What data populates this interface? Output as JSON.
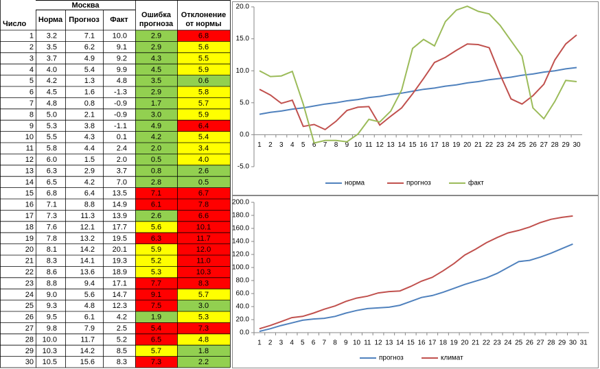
{
  "table": {
    "title": "Москва",
    "columns": [
      [
        "Число"
      ],
      [
        "Норма"
      ],
      [
        "Прогноз"
      ],
      [
        "Факт"
      ],
      [
        "Ошибка",
        "прогноза"
      ],
      [
        "Отклонение",
        "от нормы"
      ]
    ],
    "rows": [
      [
        "1",
        "3.2",
        "7.1",
        "10.0",
        "2.9",
        "6.8"
      ],
      [
        "2",
        "3.5",
        "6.2",
        "9.1",
        "2.9",
        "5.6"
      ],
      [
        "3",
        "3.7",
        "4.9",
        "9.2",
        "4.3",
        "5.5"
      ],
      [
        "4",
        "4.0",
        "5.4",
        "9.9",
        "4.5",
        "5.9"
      ],
      [
        "5",
        "4.2",
        "1.3",
        "4.8",
        "3.5",
        "0.6"
      ],
      [
        "6",
        "4.5",
        "1.6",
        "-1.3",
        "2.9",
        "5.8"
      ],
      [
        "7",
        "4.8",
        "0.8",
        "-0.9",
        "1.7",
        "5.7"
      ],
      [
        "8",
        "5.0",
        "2.1",
        "-0.9",
        "3.0",
        "5.9"
      ],
      [
        "9",
        "5.3",
        "3.8",
        "-1.1",
        "4.9",
        "6.4"
      ],
      [
        "10",
        "5.5",
        "4.3",
        "0.1",
        "4.2",
        "5.4"
      ],
      [
        "11",
        "5.8",
        "4.4",
        "2.4",
        "2.0",
        "3.4"
      ],
      [
        "12",
        "6.0",
        "1.5",
        "2.0",
        "0.5",
        "4.0"
      ],
      [
        "13",
        "6.3",
        "2.9",
        "3.7",
        "0.8",
        "2.6"
      ],
      [
        "14",
        "6.5",
        "4.2",
        "7.0",
        "2.8",
        "0.5"
      ],
      [
        "15",
        "6.8",
        "6.4",
        "13.5",
        "7.1",
        "6.7"
      ],
      [
        "16",
        "7.1",
        "8.8",
        "14.9",
        "6.1",
        "7.8"
      ],
      [
        "17",
        "7.3",
        "11.3",
        "13.9",
        "2.6",
        "6.6"
      ],
      [
        "18",
        "7.6",
        "12.1",
        "17.7",
        "5.6",
        "10.1"
      ],
      [
        "19",
        "7.8",
        "13.2",
        "19.5",
        "6.3",
        "11.7"
      ],
      [
        "20",
        "8.1",
        "14.2",
        "20.1",
        "5.9",
        "12.0"
      ],
      [
        "21",
        "8.3",
        "14.1",
        "19.3",
        "5.2",
        "11.0"
      ],
      [
        "22",
        "8.6",
        "13.6",
        "18.9",
        "5.3",
        "10.3"
      ],
      [
        "23",
        "8.8",
        "9.4",
        "17.1",
        "7.7",
        "8.3"
      ],
      [
        "24",
        "9.0",
        "5.6",
        "14.7",
        "9.1",
        "5.7"
      ],
      [
        "25",
        "9.3",
        "4.8",
        "12.3",
        "7.5",
        "3.0"
      ],
      [
        "26",
        "9.5",
        "6.1",
        "4.2",
        "1.9",
        "5.3"
      ],
      [
        "27",
        "9.8",
        "7.9",
        "2.5",
        "5.4",
        "7.3"
      ],
      [
        "28",
        "10.0",
        "11.7",
        "5.2",
        "6.5",
        "4.8"
      ],
      [
        "29",
        "10.3",
        "14.2",
        "8.5",
        "5.7",
        "1.8"
      ],
      [
        "30",
        "10.5",
        "15.6",
        "8.3",
        "7.3",
        "2.2"
      ]
    ],
    "cell_colors": [
      [
        "#92d050",
        "#ff0000"
      ],
      [
        "#92d050",
        "#ffff00"
      ],
      [
        "#92d050",
        "#ffff00"
      ],
      [
        "#92d050",
        "#ffff00"
      ],
      [
        "#92d050",
        "#92d050"
      ],
      [
        "#92d050",
        "#ffff00"
      ],
      [
        "#92d050",
        "#ffff00"
      ],
      [
        "#92d050",
        "#ffff00"
      ],
      [
        "#92d050",
        "#ff0000"
      ],
      [
        "#92d050",
        "#ffff00"
      ],
      [
        "#92d050",
        "#ffff00"
      ],
      [
        "#92d050",
        "#ffff00"
      ],
      [
        "#92d050",
        "#92d050"
      ],
      [
        "#92d050",
        "#92d050"
      ],
      [
        "#ff0000",
        "#ff0000"
      ],
      [
        "#ff0000",
        "#ff0000"
      ],
      [
        "#92d050",
        "#ff0000"
      ],
      [
        "#ffff00",
        "#ff0000"
      ],
      [
        "#ff0000",
        "#ff0000"
      ],
      [
        "#ffff00",
        "#ff0000"
      ],
      [
        "#ffff00",
        "#ff0000"
      ],
      [
        "#ffff00",
        "#ff0000"
      ],
      [
        "#ff0000",
        "#ff0000"
      ],
      [
        "#ff0000",
        "#ffff00"
      ],
      [
        "#ff0000",
        "#92d050"
      ],
      [
        "#92d050",
        "#ffff00"
      ],
      [
        "#ff0000",
        "#ff0000"
      ],
      [
        "#ff0000",
        "#ffff00"
      ],
      [
        "#ffff00",
        "#92d050"
      ],
      [
        "#ff0000",
        "#92d050"
      ]
    ]
  },
  "chart_data": [
    {
      "type": "line",
      "categories": [
        "1",
        "2",
        "3",
        "4",
        "5",
        "6",
        "7",
        "8",
        "9",
        "10",
        "11",
        "12",
        "13",
        "14",
        "15",
        "16",
        "17",
        "18",
        "19",
        "20",
        "21",
        "22",
        "23",
        "24",
        "25",
        "26",
        "27",
        "28",
        "29",
        "30"
      ],
      "ylim": [
        -5,
        20
      ],
      "yticks": [
        {
          "value": -5,
          "label": "-5.0"
        },
        {
          "value": 0,
          "label": "0.0"
        },
        {
          "value": 5,
          "label": "5.0"
        },
        {
          "value": 10,
          "label": "10.0"
        },
        {
          "value": 15,
          "label": "15.0"
        },
        {
          "value": 20,
          "label": "20.0"
        }
      ],
      "grid": false,
      "legend": "bottom",
      "series": [
        {
          "name": "норма",
          "color": "#4f81bd",
          "values": [
            3.2,
            3.5,
            3.7,
            4.0,
            4.2,
            4.5,
            4.8,
            5.0,
            5.3,
            5.5,
            5.8,
            6.0,
            6.3,
            6.5,
            6.8,
            7.1,
            7.3,
            7.6,
            7.8,
            8.1,
            8.3,
            8.6,
            8.8,
            9.0,
            9.3,
            9.5,
            9.8,
            10.0,
            10.3,
            10.5
          ]
        },
        {
          "name": "прогноз",
          "color": "#c0504d",
          "values": [
            7.1,
            6.2,
            4.9,
            5.4,
            1.3,
            1.6,
            0.8,
            2.1,
            3.8,
            4.3,
            4.4,
            1.5,
            2.9,
            4.2,
            6.4,
            8.8,
            11.3,
            12.1,
            13.2,
            14.2,
            14.1,
            13.6,
            9.4,
            5.6,
            4.8,
            6.1,
            7.9,
            11.7,
            14.2,
            15.6
          ]
        },
        {
          "name": "факт",
          "color": "#9bbb59",
          "values": [
            10.0,
            9.1,
            9.2,
            9.9,
            4.8,
            -1.3,
            -0.9,
            -0.9,
            -1.1,
            0.1,
            2.4,
            2.0,
            3.7,
            7.0,
            13.5,
            14.9,
            13.9,
            17.7,
            19.5,
            20.1,
            19.3,
            18.9,
            17.1,
            14.7,
            12.3,
            4.2,
            2.5,
            5.2,
            8.5,
            8.3
          ]
        }
      ]
    },
    {
      "type": "line",
      "categories": [
        "1",
        "2",
        "3",
        "4",
        "5",
        "6",
        "7",
        "8",
        "9",
        "10",
        "11",
        "12",
        "13",
        "14",
        "15",
        "16",
        "17",
        "18",
        "19",
        "20",
        "21",
        "22",
        "23",
        "24",
        "25",
        "26",
        "27",
        "28",
        "29",
        "30",
        "31"
      ],
      "ylim": [
        0,
        200
      ],
      "yticks": [
        {
          "value": 0,
          "label": "0.0"
        },
        {
          "value": 20,
          "label": "20.0"
        },
        {
          "value": 40,
          "label": "40.0"
        },
        {
          "value": 60,
          "label": "60.0"
        },
        {
          "value": 80,
          "label": "80.0"
        },
        {
          "value": 100,
          "label": "100.0"
        },
        {
          "value": 120,
          "label": "120.0"
        },
        {
          "value": 140,
          "label": "140.0"
        },
        {
          "value": 160,
          "label": "160.0"
        },
        {
          "value": 180,
          "label": "180.0"
        },
        {
          "value": 200,
          "label": "200.0"
        }
      ],
      "grid": false,
      "legend": "bottom",
      "series": [
        {
          "name": "прогноз",
          "color": "#4f81bd",
          "values": [
            2,
            6,
            11,
            15,
            19,
            21,
            22,
            25,
            30,
            34,
            37,
            38,
            39,
            42,
            48,
            54,
            57,
            62,
            68,
            74,
            79,
            84,
            91,
            100,
            109,
            111,
            116,
            122,
            129,
            136,
            null
          ]
        },
        {
          "name": "климат",
          "color": "#c0504d",
          "values": [
            6,
            11,
            17,
            23,
            25,
            30,
            36,
            41,
            48,
            53,
            56,
            61,
            63,
            64,
            71,
            79,
            85,
            95,
            106,
            119,
            128,
            138,
            146,
            153,
            157,
            162,
            169,
            174,
            177,
            179,
            null
          ]
        }
      ]
    }
  ]
}
